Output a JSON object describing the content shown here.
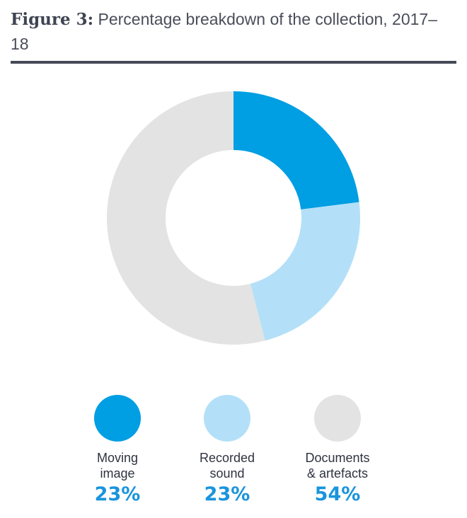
{
  "figure": {
    "label": "Figure 3:",
    "title": "Percentage breakdown of the collection, 2017–18"
  },
  "chart_data": {
    "type": "pie",
    "title": "Figure 3: Percentage breakdown of the collection, 2017–18",
    "donut": true,
    "unit": "%",
    "categories": [
      "Moving image",
      "Recorded sound",
      "Documents & artefacts"
    ],
    "values": [
      23,
      23,
      54
    ],
    "value_labels": [
      "23%",
      "23%",
      "54%"
    ],
    "legend_lines": [
      [
        "Moving",
        "image"
      ],
      [
        "Recorded",
        "sound"
      ],
      [
        "Documents",
        "& artefacts"
      ]
    ],
    "legend_placement": "bottom",
    "colors": [
      "#009ee3",
      "#b3e0f8",
      "#e3e3e3"
    ],
    "start_angle": "12 o'clock, clockwise"
  }
}
